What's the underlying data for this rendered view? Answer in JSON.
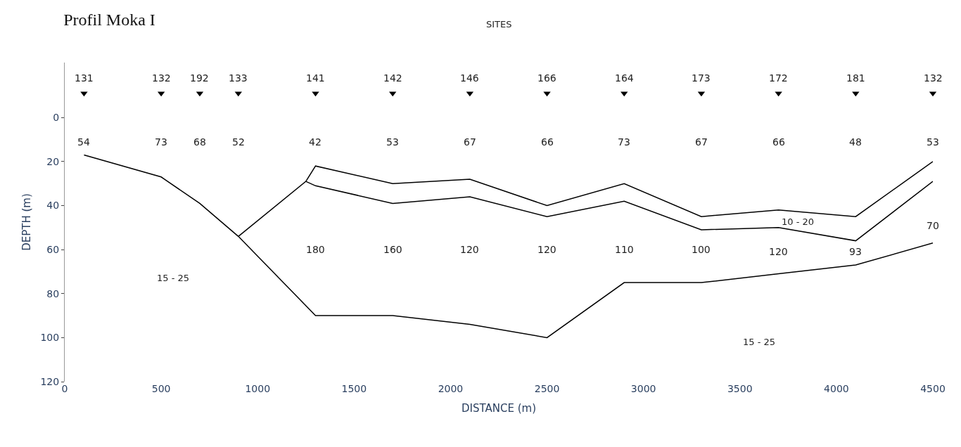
{
  "chart_data": {
    "type": "line",
    "title": "Profil Moka I",
    "xlabel": "DISTANCE (m)",
    "ylabel": "DEPTH (m)",
    "xlim": [
      0,
      4500
    ],
    "xticks": [
      0,
      500,
      1000,
      1500,
      2000,
      2500,
      3000,
      3500,
      4000,
      4500
    ],
    "ylim": [
      120,
      -25
    ],
    "yticks": [
      0,
      20,
      40,
      60,
      80,
      100,
      120
    ],
    "marker": "none",
    "line_style": "solid",
    "series": [
      {
        "color": "#000000",
        "x": [
          100,
          500,
          700,
          900,
          1300,
          1700,
          2100,
          2500,
          2900,
          3300,
          3700,
          4100,
          4500
        ],
        "values": [
          17,
          27,
          39,
          54,
          90,
          90,
          94,
          100,
          75,
          75,
          71,
          67,
          57
        ]
      },
      {
        "color": "#000000",
        "x": [
          900,
          1250,
          1300,
          1700,
          2100,
          2500,
          2900,
          3300,
          3700,
          4100,
          4500
        ],
        "values": [
          54,
          29,
          22,
          30,
          28,
          40,
          30,
          45,
          42,
          45,
          20
        ]
      },
      {
        "color": "#000000",
        "x": [
          1250,
          1300,
          1700,
          2100,
          2500,
          2900,
          3300,
          3700,
          4100,
          4500
        ],
        "values": [
          29,
          31,
          39,
          36,
          45,
          38,
          51,
          50,
          56,
          29
        ]
      },
      {
        "type": "scatter",
        "marker": "triangle",
        "color": "#000000",
        "x": [
          100,
          500,
          700,
          900,
          1300,
          1700,
          2100,
          2500,
          2900,
          3300,
          3700,
          4100,
          4500
        ],
        "values": [
          -11,
          -11,
          -11,
          -11,
          -11,
          -11,
          -11,
          -11,
          -11,
          -11,
          -11,
          -11,
          -11
        ]
      }
    ],
    "annotations": [
      "SITES",
      "131",
      "132",
      "192",
      "133",
      "141",
      "142",
      "146",
      "166",
      "164",
      "173",
      "172",
      "181",
      "132",
      "54",
      "73",
      "68",
      "52",
      "42",
      "53",
      "67",
      "66",
      "73",
      "67",
      "66",
      "48",
      "53",
      "180",
      "160",
      "120",
      "120",
      "110",
      "100",
      "120",
      "93",
      "70",
      "10 - 20",
      "15 - 25",
      "15 - 25"
    ]
  }
}
